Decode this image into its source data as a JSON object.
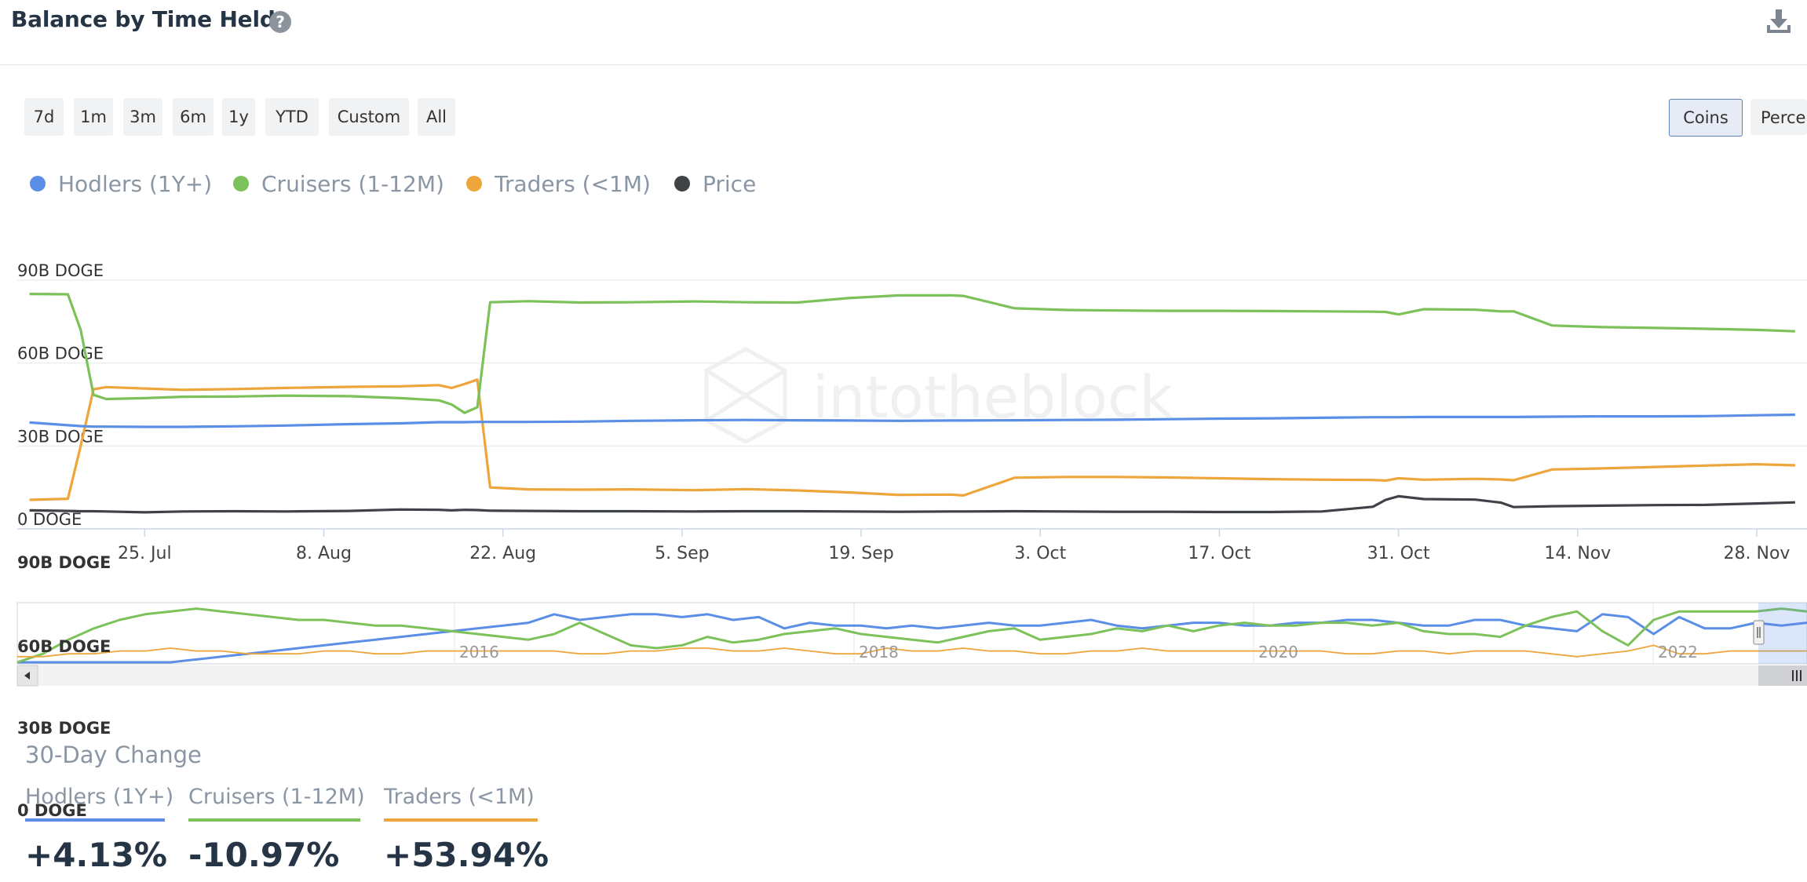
{
  "title": "Balance by Time Held",
  "header_icons": {
    "help": "help-circle-icon",
    "download": "download-icon"
  },
  "range_buttons": [
    "7d",
    "1m",
    "3m",
    "6m",
    "1y",
    "YTD",
    "Custom",
    "All"
  ],
  "unit_toggle": {
    "active": "Coins",
    "inactive": "Perce"
  },
  "legend": [
    {
      "label": "Hodlers (1Y+)",
      "color": "#5b8ee6"
    },
    {
      "label": "Cruisers (1-12M)",
      "color": "#7cc15a"
    },
    {
      "label": "Traders (<1M)",
      "color": "#eda53c"
    },
    {
      "label": "Price",
      "color": "#3f4247"
    }
  ],
  "watermark": "intotheblock",
  "chart_data": {
    "type": "line",
    "y_ticks": [
      "90B DOGE",
      "60B DOGE",
      "30B DOGE",
      "0 DOGE"
    ],
    "ylim": [
      0,
      90
    ],
    "y_unit": "B DOGE",
    "x_ticks": [
      "25. Jul",
      "8. Aug",
      "22. Aug",
      "5. Sep",
      "19. Sep",
      "3. Oct",
      "17. Oct",
      "31. Oct",
      "14. Nov",
      "28. Nov"
    ],
    "x": [
      "2022-07-16",
      "2022-07-19",
      "2022-07-20",
      "2022-07-21",
      "2022-07-22",
      "2022-07-25",
      "2022-07-28",
      "2022-08-01",
      "2022-08-05",
      "2022-08-10",
      "2022-08-14",
      "2022-08-17",
      "2022-08-18",
      "2022-08-19",
      "2022-08-20",
      "2022-08-21",
      "2022-08-24",
      "2022-08-28",
      "2022-09-01",
      "2022-09-06",
      "2022-09-10",
      "2022-09-14",
      "2022-09-18",
      "2022-09-22",
      "2022-09-26",
      "2022-09-27",
      "2022-10-01",
      "2022-10-05",
      "2022-10-09",
      "2022-10-13",
      "2022-10-17",
      "2022-10-21",
      "2022-10-25",
      "2022-10-29",
      "2022-10-30",
      "2022-10-31",
      "2022-11-02",
      "2022-11-06",
      "2022-11-08",
      "2022-11-09",
      "2022-11-12",
      "2022-11-16",
      "2022-11-20",
      "2022-11-24",
      "2022-11-28",
      "2022-12-01"
    ],
    "series": [
      {
        "name": "Hodlers (1Y+)",
        "values": [
          38.5,
          37.5,
          37.2,
          37.0,
          37.0,
          36.9,
          36.9,
          37.1,
          37.4,
          37.9,
          38.2,
          38.6,
          38.6,
          38.6,
          38.7,
          38.7,
          38.7,
          38.8,
          39.1,
          39.3,
          39.4,
          39.3,
          39.2,
          39.1,
          39.2,
          39.2,
          39.3,
          39.4,
          39.5,
          39.7,
          39.9,
          40.0,
          40.2,
          40.4,
          40.4,
          40.4,
          40.5,
          40.5,
          40.5,
          40.5,
          40.6,
          40.7,
          40.7,
          40.8,
          41.1,
          41.3
        ]
      },
      {
        "name": "Cruisers (1-12M)",
        "values": [
          85.0,
          84.9,
          72.0,
          48.5,
          47.0,
          47.3,
          47.8,
          47.9,
          48.2,
          48.0,
          47.3,
          46.5,
          45.0,
          42.0,
          44.0,
          82.0,
          82.4,
          81.9,
          82.0,
          82.3,
          82.0,
          81.9,
          83.5,
          84.5,
          84.5,
          84.3,
          79.8,
          79.2,
          79.0,
          78.9,
          78.9,
          78.8,
          78.7,
          78.6,
          78.5,
          77.6,
          79.5,
          79.3,
          78.7,
          78.7,
          73.6,
          73.0,
          72.7,
          72.4,
          72.0,
          71.5
        ]
      },
      {
        "name": "Traders (<1M)",
        "values": [
          10.5,
          10.9,
          30.0,
          50.5,
          51.3,
          50.8,
          50.3,
          50.6,
          51.0,
          51.4,
          51.6,
          52.0,
          51.0,
          52.4,
          54.0,
          15.0,
          14.3,
          14.2,
          14.3,
          14.0,
          14.4,
          13.9,
          13.2,
          12.3,
          12.4,
          12.1,
          18.5,
          18.8,
          18.8,
          18.6,
          18.3,
          18.0,
          17.8,
          17.7,
          17.5,
          18.3,
          17.8,
          18.1,
          17.9,
          17.6,
          21.5,
          21.9,
          22.4,
          22.9,
          23.4,
          23.0
        ]
      },
      {
        "name": "Price",
        "values": [
          6.7,
          6.5,
          6.4,
          6.4,
          6.3,
          6.0,
          6.3,
          6.4,
          6.3,
          6.5,
          7.0,
          6.9,
          6.7,
          6.9,
          6.8,
          6.6,
          6.5,
          6.4,
          6.4,
          6.3,
          6.4,
          6.4,
          6.3,
          6.2,
          6.3,
          6.3,
          6.4,
          6.3,
          6.2,
          6.2,
          6.1,
          6.1,
          6.3,
          8.0,
          10.5,
          11.8,
          10.8,
          10.6,
          9.5,
          7.9,
          8.2,
          8.4,
          8.6,
          8.7,
          9.2,
          9.6
        ]
      }
    ],
    "navigator": {
      "x_ticks": [
        "2016",
        "2018",
        "2020",
        "2022"
      ],
      "y_ticks": [
        "90B DOGE",
        "60B DOGE",
        "30B DOGE",
        "0 DOGE"
      ],
      "series": [
        {
          "name": "Hodlers (1Y+)",
          "values": [
            0,
            0,
            0,
            0,
            0,
            0,
            0,
            1,
            2,
            3,
            4,
            5,
            6,
            7,
            8,
            9,
            10,
            11,
            12,
            13,
            14,
            17,
            15,
            16,
            17,
            17,
            16,
            17,
            15,
            16,
            12,
            14,
            13,
            13,
            12,
            13,
            12,
            13,
            14,
            13,
            13,
            14,
            15,
            13,
            12,
            13,
            14,
            14,
            13,
            13,
            14,
            14,
            15,
            15,
            14,
            13,
            13,
            15,
            15,
            13,
            12,
            11,
            17,
            16,
            10,
            16,
            12,
            12,
            14,
            13,
            14
          ]
        },
        {
          "name": "Cruisers (1-12M)",
          "values": [
            0,
            3,
            8,
            12,
            15,
            17,
            18,
            19,
            18,
            17,
            16,
            15,
            15,
            14,
            13,
            13,
            12,
            11,
            10,
            9,
            8,
            10,
            14,
            10,
            6,
            5,
            6,
            9,
            7,
            8,
            10,
            11,
            12,
            10,
            9,
            8,
            7,
            9,
            11,
            12,
            8,
            9,
            10,
            12,
            11,
            13,
            11,
            13,
            14,
            13,
            13,
            14,
            14,
            13,
            14,
            11,
            10,
            10,
            9,
            13,
            16,
            18,
            11,
            6,
            15,
            18,
            18,
            18,
            18,
            19,
            18
          ]
        },
        {
          "name": "Traders (<1M)",
          "values": [
            2,
            2,
            3,
            3,
            4,
            4,
            5,
            4,
            4,
            3,
            3,
            3,
            4,
            4,
            3,
            3,
            4,
            4,
            4,
            4,
            4,
            4,
            3,
            3,
            4,
            4,
            5,
            5,
            4,
            4,
            5,
            4,
            3,
            3,
            5,
            4,
            4,
            5,
            4,
            4,
            3,
            3,
            4,
            4,
            5,
            4,
            4,
            4,
            4,
            4,
            4,
            4,
            3,
            3,
            4,
            4,
            3,
            4,
            4,
            4,
            3,
            2,
            3,
            4,
            6,
            3,
            3,
            4,
            4,
            4,
            4
          ]
        }
      ]
    }
  },
  "change": {
    "title": "30-Day Change",
    "items": [
      {
        "label": "Hodlers (1Y+)",
        "value": "+4.13%",
        "color": "#5b8ee6"
      },
      {
        "label": "Cruisers (1-12M)",
        "value": "-10.97%",
        "color": "#7cc15a"
      },
      {
        "label": "Traders (<1M)",
        "value": "+53.94%",
        "color": "#eda53c"
      }
    ]
  }
}
